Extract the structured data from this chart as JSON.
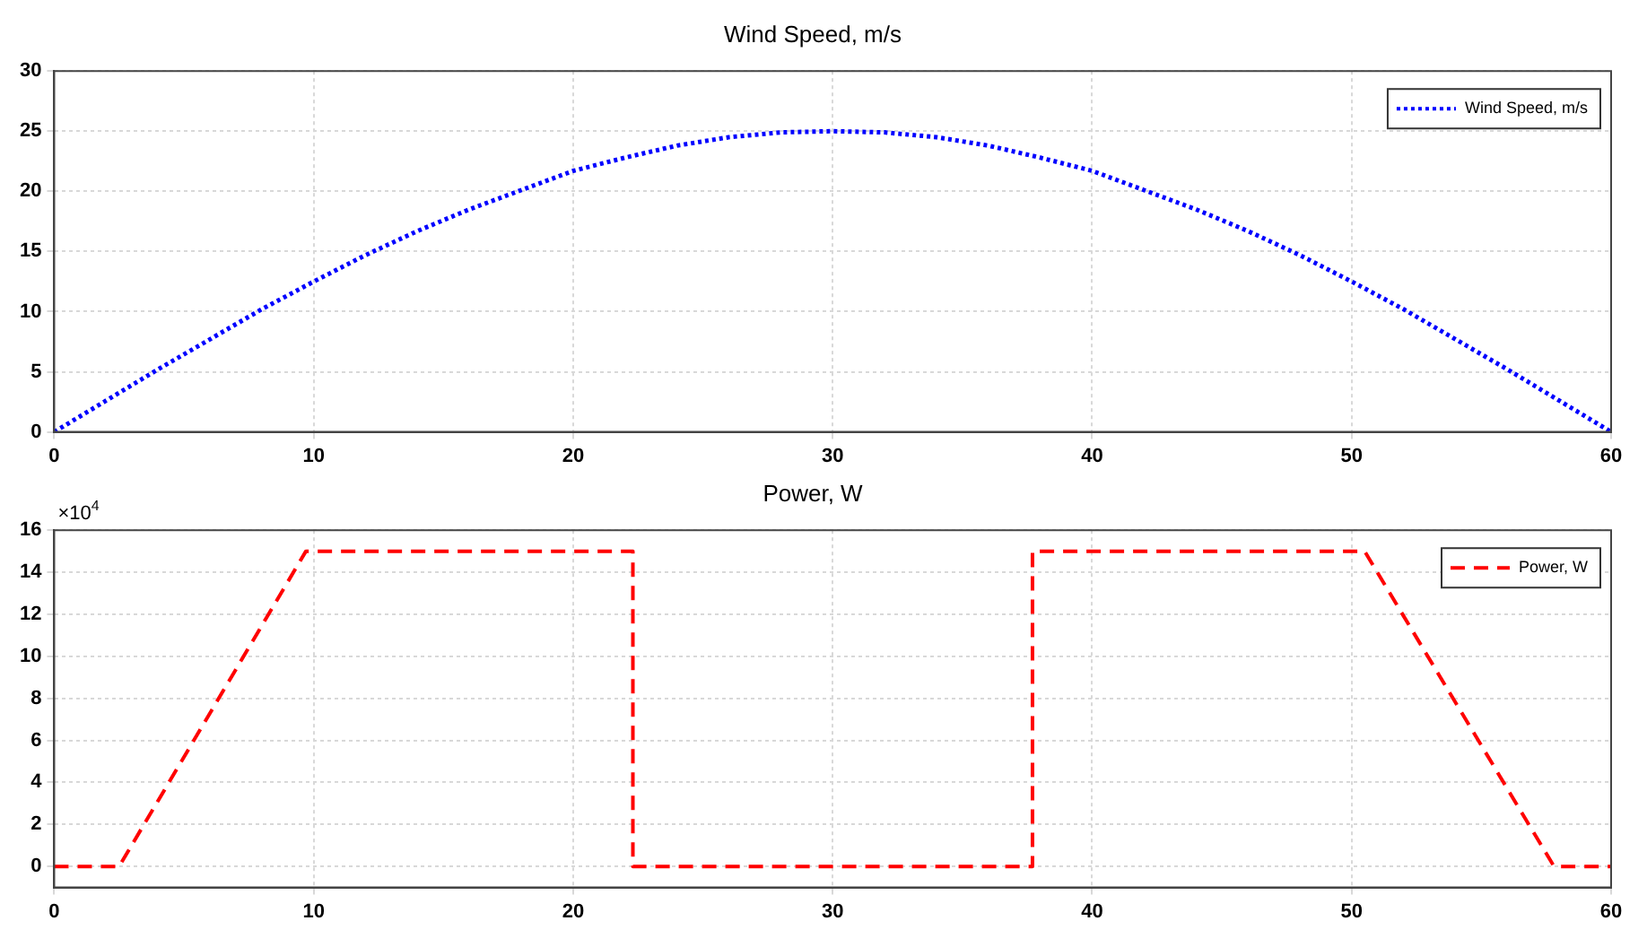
{
  "chart_data": [
    {
      "type": "line",
      "title": "Wind Speed, m/s",
      "x": [
        0,
        2,
        4,
        6,
        8,
        10,
        12,
        14,
        16,
        18,
        20,
        22,
        24,
        26,
        28,
        30,
        32,
        34,
        36,
        38,
        40,
        42,
        44,
        46,
        48,
        50,
        52,
        54,
        56,
        58,
        60
      ],
      "series": [
        {
          "name": "Wind Speed, m/s",
          "color": "#0000ff",
          "values": [
            0,
            2.6,
            5.2,
            7.7,
            10.2,
            12.5,
            14.7,
            16.7,
            18.5,
            20.1,
            21.7,
            22.8,
            23.8,
            24.5,
            24.9,
            25,
            24.9,
            24.5,
            23.8,
            22.8,
            21.7,
            20.1,
            18.5,
            16.7,
            14.7,
            12.5,
            10.2,
            7.7,
            5.2,
            2.6,
            0
          ]
        }
      ],
      "xlim": [
        0,
        60
      ],
      "xticks": [
        0,
        10,
        20,
        30,
        40,
        50,
        60
      ],
      "ylim": [
        0,
        30
      ],
      "yticks": [
        0,
        5,
        10,
        15,
        20,
        25,
        30
      ],
      "grid": true,
      "legend": "top right",
      "line_style": "dotted"
    },
    {
      "type": "line",
      "title": "Power, W",
      "x": [
        0,
        2.5,
        9.7,
        22.3,
        22.3,
        37.7,
        37.7,
        50.5,
        57.8,
        60
      ],
      "series": [
        {
          "name": "Power, W",
          "color": "#ff0000",
          "values": [
            0,
            0,
            15,
            15,
            0,
            0,
            15,
            15,
            0,
            0
          ]
        }
      ],
      "xlim": [
        0,
        60
      ],
      "xticks": [
        0,
        10,
        20,
        30,
        40,
        50,
        60
      ],
      "ylim": [
        -1,
        16
      ],
      "yticks": [
        0,
        2,
        4,
        6,
        8,
        10,
        12,
        14,
        16
      ],
      "grid": true,
      "legend": "top right",
      "line_style": "dashed",
      "annotations": [
        "×10$^{4}$"
      ]
    }
  ]
}
